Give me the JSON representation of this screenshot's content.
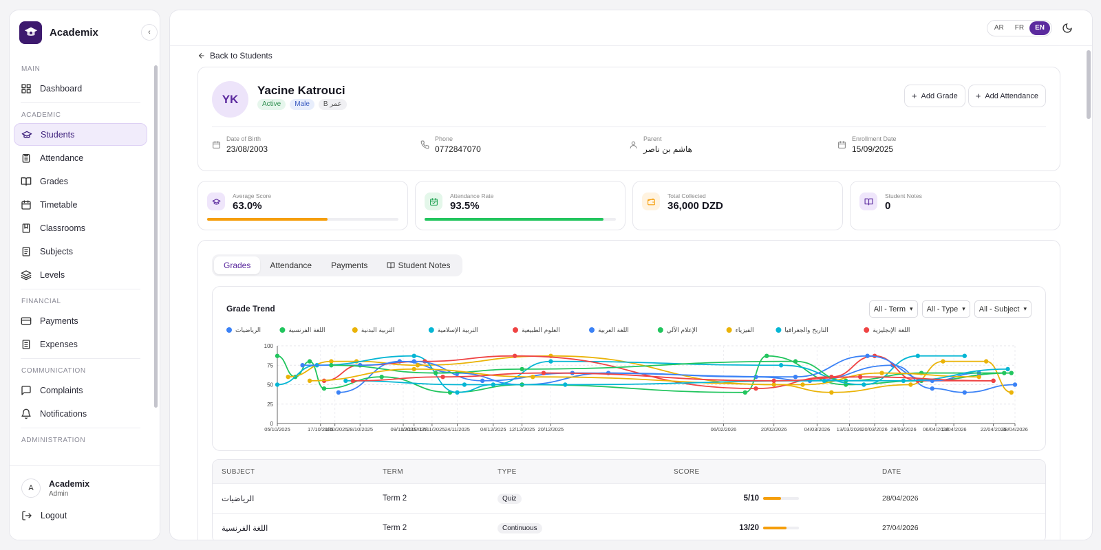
{
  "app": {
    "name": "Academix"
  },
  "sidebar": {
    "sections": [
      {
        "title": "MAIN",
        "items": [
          {
            "label": "Dashboard",
            "icon": "grid-icon"
          }
        ]
      },
      {
        "title": "ACADEMIC",
        "items": [
          {
            "label": "Students",
            "icon": "graduation-cap-icon",
            "active": true
          },
          {
            "label": "Attendance",
            "icon": "clipboard-icon"
          },
          {
            "label": "Grades",
            "icon": "book-open-icon"
          },
          {
            "label": "Timetable",
            "icon": "calendar-icon"
          },
          {
            "label": "Classrooms",
            "icon": "door-icon"
          },
          {
            "label": "Subjects",
            "icon": "book-icon"
          },
          {
            "label": "Levels",
            "icon": "layers-icon"
          }
        ]
      },
      {
        "title": "FINANCIAL",
        "items": [
          {
            "label": "Payments",
            "icon": "credit-card-icon"
          },
          {
            "label": "Expenses",
            "icon": "receipt-icon"
          }
        ]
      },
      {
        "title": "COMMUNICATION",
        "items": [
          {
            "label": "Complaints",
            "icon": "message-icon"
          },
          {
            "label": "Notifications",
            "icon": "bell-icon"
          }
        ]
      },
      {
        "title": "ADMINISTRATION",
        "items": []
      }
    ],
    "user": {
      "initial": "A",
      "name": "Academix",
      "role": "Admin"
    },
    "logout_label": "Logout"
  },
  "topbar": {
    "languages": [
      "AR",
      "FR",
      "EN"
    ],
    "active_language": "EN"
  },
  "back_label": "Back to Students",
  "student": {
    "initials": "YK",
    "name": "Yacine Katrouci",
    "badges": [
      "Active",
      "Male",
      "B عمر"
    ],
    "actions": {
      "add_grade": "Add Grade",
      "add_attendance": "Add Attendance"
    },
    "info": [
      {
        "label": "Date of Birth",
        "value": "23/08/2003",
        "icon": "calendar-icon"
      },
      {
        "label": "Phone",
        "value": "0772847070",
        "icon": "phone-icon"
      },
      {
        "label": "Parent",
        "value": "هاشم بن ناصر",
        "icon": "user-icon"
      },
      {
        "label": "Enrollment Date",
        "value": "15/09/2025",
        "icon": "calendar-icon"
      }
    ]
  },
  "stats": [
    {
      "label": "Average Score",
      "value": "63.0%",
      "progress": 0.63,
      "color": "#f59e0b",
      "icon": "graduation-cap-icon",
      "icon_bg": "#efe6fb",
      "icon_color": "#5b2a9e"
    },
    {
      "label": "Attendance Rate",
      "value": "93.5%",
      "progress": 0.935,
      "color": "#22c55e",
      "icon": "calendar-check-icon",
      "icon_bg": "#e4f7ea",
      "icon_color": "#22a355"
    },
    {
      "label": "Total Collected",
      "value": "36,000 DZD",
      "icon": "wallet-icon",
      "icon_bg": "#fff3e0",
      "icon_color": "#f59e0b"
    },
    {
      "label": "Student Notes",
      "value": "0",
      "icon": "book-open-icon",
      "icon_bg": "#efe6fb",
      "icon_color": "#5b2a9e"
    }
  ],
  "tabs": [
    "Grades",
    "Attendance",
    "Payments",
    "Student Notes"
  ],
  "active_tab": "Grades",
  "filters": [
    "All - Term",
    "All - Type",
    "All - Subject"
  ],
  "chart_data": {
    "type": "line",
    "title": "Grade Trend",
    "ylim": [
      0,
      100
    ],
    "yticks": [
      0,
      25,
      50,
      75,
      100
    ],
    "legend_position": "top-left",
    "grid": true,
    "x_range": [
      "2025-10-05",
      "2026-04-28"
    ],
    "x_ticks": [
      "05/10/2025",
      "17/10/2025",
      "21/10/2025",
      "28/10/2025",
      "09/11/2025",
      "12/11/2025",
      "17/11/2025",
      "24/11/2025",
      "04/12/2025",
      "12/12/2025",
      "20/12/2025",
      "06/02/2026",
      "20/02/2026",
      "04/03/2026",
      "13/03/2026",
      "20/03/2026",
      "28/03/2026",
      "06/04/2026",
      "11/04/2026",
      "22/04/2026",
      "28/04/2026"
    ],
    "series": [
      {
        "name": "الرياضيات",
        "color": "#3b82f6",
        "points": [
          [
            "2025-10-22",
            40
          ],
          [
            "2025-11-08",
            80
          ],
          [
            "2025-11-24",
            65
          ],
          [
            "2025-12-12",
            50
          ],
          [
            "2026-01-05",
            65
          ],
          [
            "2026-02-15",
            60
          ],
          [
            "2026-03-02",
            55
          ],
          [
            "2026-03-25",
            75
          ],
          [
            "2026-04-05",
            45
          ],
          [
            "2026-04-14",
            40
          ],
          [
            "2026-04-28",
            50
          ]
        ]
      },
      {
        "name": "اللغة الفرنسية",
        "color": "#22c55e",
        "points": [
          [
            "2025-10-05",
            87
          ],
          [
            "2025-10-10",
            60
          ],
          [
            "2025-10-14",
            80
          ],
          [
            "2025-10-18",
            45
          ],
          [
            "2025-11-03",
            60
          ],
          [
            "2025-11-22",
            40
          ],
          [
            "2025-12-12",
            50
          ],
          [
            "2026-02-12",
            40
          ],
          [
            "2026-02-18",
            87
          ],
          [
            "2026-03-12",
            50
          ],
          [
            "2026-04-02",
            55
          ],
          [
            "2026-04-27",
            65
          ]
        ]
      },
      {
        "name": "التربية البدنية",
        "color": "#eab308",
        "points": [
          [
            "2025-10-08",
            60
          ],
          [
            "2025-10-20",
            80
          ],
          [
            "2025-10-27",
            80
          ],
          [
            "2025-11-13",
            75
          ],
          [
            "2025-12-20",
            87
          ],
          [
            "2026-02-20",
            50
          ],
          [
            "2026-03-08",
            40
          ],
          [
            "2026-03-30",
            50
          ],
          [
            "2026-04-08",
            80
          ],
          [
            "2026-04-20",
            80
          ],
          [
            "2026-04-27",
            40
          ]
        ]
      },
      {
        "name": "التربية الإسلامية",
        "color": "#06b6d4",
        "points": [
          [
            "2025-10-05",
            50
          ],
          [
            "2025-10-16",
            75
          ],
          [
            "2025-11-12",
            87
          ],
          [
            "2025-11-24",
            40
          ],
          [
            "2025-12-04",
            50
          ],
          [
            "2025-12-20",
            80
          ],
          [
            "2026-02-22",
            75
          ],
          [
            "2026-03-17",
            50
          ],
          [
            "2026-04-01",
            87
          ],
          [
            "2026-04-14",
            87
          ]
        ]
      },
      {
        "name": "العلوم الطبيعية",
        "color": "#ef4444",
        "points": [
          [
            "2025-10-18",
            55
          ],
          [
            "2025-10-28",
            75
          ],
          [
            "2025-11-15",
            80
          ],
          [
            "2025-12-10",
            87
          ],
          [
            "2026-02-15",
            45
          ],
          [
            "2026-03-08",
            60
          ],
          [
            "2026-03-20",
            87
          ],
          [
            "2026-04-01",
            55
          ],
          [
            "2026-04-22",
            55
          ]
        ]
      },
      {
        "name": "اللغة العربية",
        "color": "#3b82f6",
        "points": [
          [
            "2025-10-12",
            75
          ],
          [
            "2025-10-28",
            75
          ],
          [
            "2025-11-12",
            80
          ],
          [
            "2025-12-01",
            55
          ],
          [
            "2025-12-26",
            65
          ],
          [
            "2026-02-26",
            60
          ],
          [
            "2026-03-18",
            87
          ],
          [
            "2026-04-05",
            55
          ],
          [
            "2026-04-18",
            65
          ]
        ]
      },
      {
        "name": "الإعلام الآلي",
        "color": "#22c55e",
        "points": [
          [
            "2025-10-20",
            75
          ],
          [
            "2025-11-18",
            65
          ],
          [
            "2025-12-12",
            70
          ],
          [
            "2026-02-26",
            80
          ],
          [
            "2026-03-12",
            55
          ],
          [
            "2026-04-02",
            65
          ],
          [
            "2026-04-25",
            65
          ]
        ]
      },
      {
        "name": "الفيزياء",
        "color": "#eab308",
        "points": [
          [
            "2025-10-14",
            55
          ],
          [
            "2025-11-12",
            70
          ],
          [
            "2025-12-15",
            60
          ],
          [
            "2026-02-28",
            50
          ],
          [
            "2026-03-22",
            65
          ],
          [
            "2026-04-18",
            60
          ]
        ]
      },
      {
        "name": "التاريخ والجغرافيا",
        "color": "#06b6d4",
        "points": [
          [
            "2025-10-24",
            55
          ],
          [
            "2025-11-26",
            50
          ],
          [
            "2025-12-24",
            50
          ],
          [
            "2026-03-06",
            55
          ],
          [
            "2026-03-28",
            55
          ],
          [
            "2026-04-26",
            70
          ]
        ]
      },
      {
        "name": "اللغة الإنجليزية",
        "color": "#ef4444",
        "points": [
          [
            "2025-10-26",
            55
          ],
          [
            "2025-11-20",
            60
          ],
          [
            "2025-12-18",
            65
          ],
          [
            "2026-02-20",
            55
          ],
          [
            "2026-03-16",
            60
          ],
          [
            "2026-04-22",
            55
          ]
        ]
      }
    ]
  },
  "grades_table": {
    "headers": [
      "SUBJECT",
      "TERM",
      "TYPE",
      "SCORE",
      "DATE"
    ],
    "rows": [
      {
        "subject": "الرياضيات",
        "term": "Term 2",
        "type": "Quiz",
        "score": "5/10",
        "ratio": 0.5,
        "date": "28/04/2026"
      },
      {
        "subject": "اللغة الفرنسية",
        "term": "Term 2",
        "type": "Continuous",
        "score": "13/20",
        "ratio": 0.65,
        "date": "27/04/2026"
      }
    ]
  }
}
